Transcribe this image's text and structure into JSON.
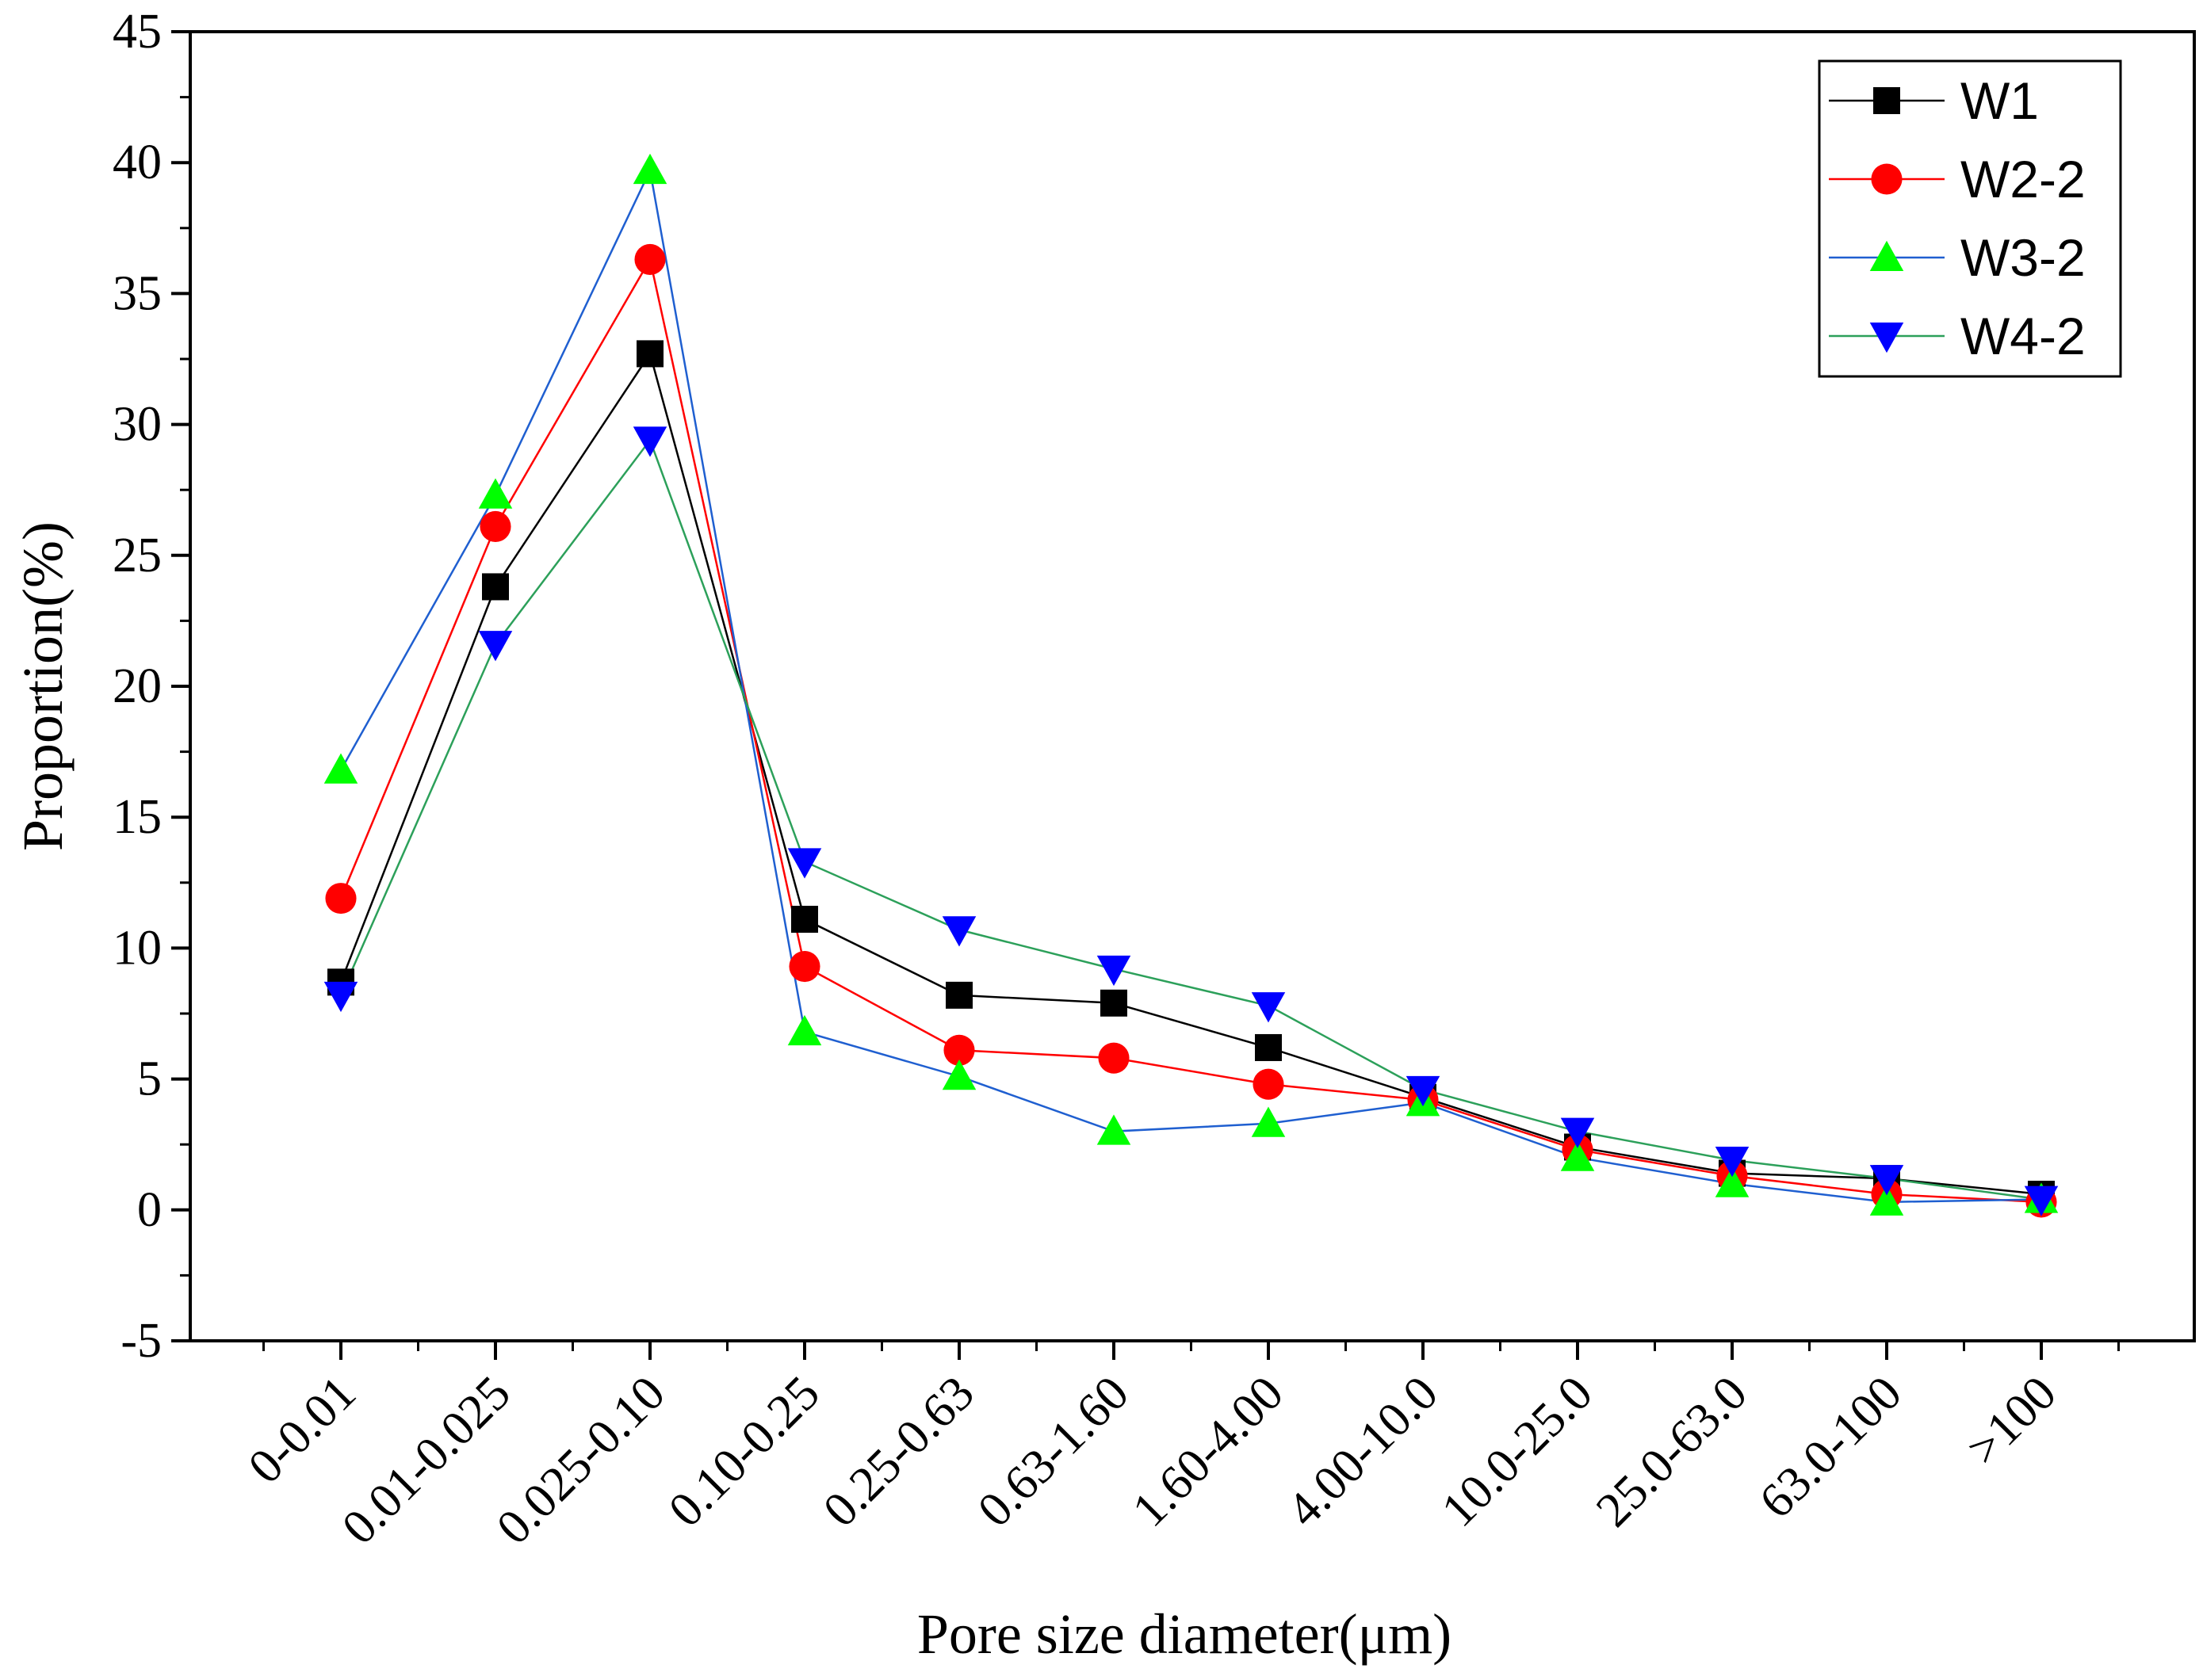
{
  "chart_data": {
    "type": "line",
    "title": "",
    "xlabel": "Pore size diameter(μm)",
    "ylabel": "Proportion(%)",
    "ylim": [
      -5,
      45
    ],
    "yticks": [
      -5,
      0,
      5,
      10,
      15,
      20,
      25,
      30,
      35,
      40,
      45
    ],
    "grid": false,
    "legend_position": "top-right",
    "categories": [
      "0-0.01",
      "0.01-0.025",
      "0.025-0.10",
      "0.10-0.25",
      "0.25-0.63",
      "0.63-1.60",
      "1.60-4.00",
      "4.00-10.0",
      "10.0-25.0",
      "25.0-63.0",
      "63.0-100",
      ">100"
    ],
    "series": [
      {
        "name": "W1",
        "marker": "square",
        "marker_color": "#000000",
        "line_color": "#000000",
        "values": [
          8.7,
          23.8,
          32.7,
          11.1,
          8.2,
          7.9,
          6.2,
          4.3,
          2.4,
          1.4,
          1.2,
          0.6
        ]
      },
      {
        "name": "W2-2",
        "marker": "circle",
        "marker_color": "#ff0000",
        "line_color": "#ff0000",
        "values": [
          11.9,
          26.1,
          36.3,
          9.3,
          6.1,
          5.8,
          4.8,
          4.2,
          2.3,
          1.3,
          0.6,
          0.3
        ]
      },
      {
        "name": "W3-2",
        "marker": "triangle-up",
        "marker_color": "#00ff00",
        "line_color": "#1f5fd0",
        "values": [
          16.8,
          27.3,
          39.7,
          6.8,
          5.1,
          3.0,
          3.3,
          4.1,
          2.0,
          1.0,
          0.3,
          0.4
        ]
      },
      {
        "name": "W4-2",
        "marker": "triangle-down",
        "marker_color": "#0000ff",
        "line_color": "#2ca05a",
        "values": [
          8.2,
          21.6,
          29.4,
          13.3,
          10.7,
          9.2,
          7.8,
          4.6,
          3.0,
          1.9,
          1.2,
          0.4
        ]
      }
    ]
  }
}
